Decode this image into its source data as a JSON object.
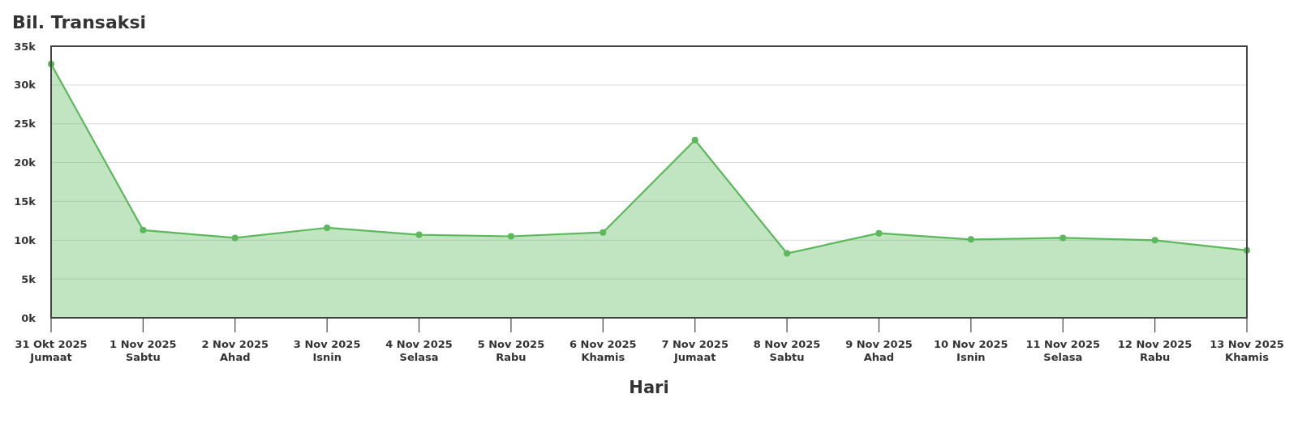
{
  "chart_data": {
    "type": "area",
    "title": "Bil. Transaksi",
    "xlabel": "Hari",
    "categories": [
      "31 Okt 2025\nJumaat",
      "1 Nov 2025\nSabtu",
      "2 Nov 2025\nAhad",
      "3 Nov 2025\nIsnin",
      "4 Nov 2025\nSelasa",
      "5 Nov 2025\nRabu",
      "6 Nov 2025\nKhamis",
      "7 Nov 2025\nJumaat",
      "8 Nov 2025\nSabtu",
      "9 Nov 2025\nAhad",
      "10 Nov 2025\nIsnin",
      "11 Nov 2025\nSelasa",
      "12 Nov 2025\nRabu",
      "13 Nov 2025\nKhamis"
    ],
    "series": [
      {
        "color": "#5cb85c",
        "values": [
          32700,
          11300,
          10300,
          11600,
          10700,
          10500,
          11000,
          22900,
          8300,
          10900,
          10100,
          10300,
          10000,
          8700
        ]
      }
    ],
    "ylim": [
      0,
      35000
    ],
    "yticks": [
      {
        "value": 0,
        "label": "0k"
      },
      {
        "value": 5000,
        "label": "5k"
      },
      {
        "value": 10000,
        "label": "10k"
      },
      {
        "value": 15000,
        "label": "15k"
      },
      {
        "value": 20000,
        "label": "20k"
      },
      {
        "value": 25000,
        "label": "25k"
      },
      {
        "value": 30000,
        "label": "30k"
      },
      {
        "value": 35000,
        "label": "35k"
      }
    ],
    "grid": "y",
    "marker": "circle"
  }
}
